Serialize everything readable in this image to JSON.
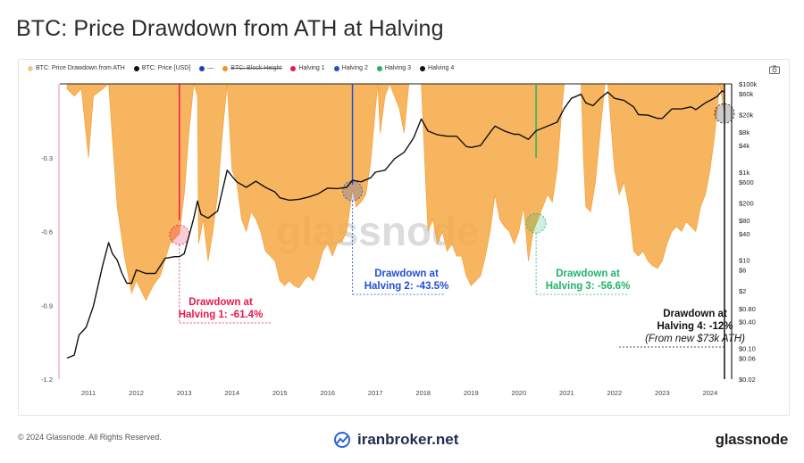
{
  "page": {
    "title": "BTC: Price Drawdown from ATH at Halving",
    "copyright": "© 2024 Glassnode. All Rights Reserved.",
    "source_watermark": "iranbroker.net",
    "brand": "glassnode"
  },
  "legend": [
    {
      "label": "BTC: Price Drawdown from ATH",
      "color": "#f7c58c",
      "kind": "dot",
      "struck": false
    },
    {
      "label": "BTC: Price [USD]",
      "color": "#111111",
      "kind": "dot",
      "struck": false
    },
    {
      "label": "—",
      "color": "#1f3fbf",
      "kind": "dot",
      "struck": false
    },
    {
      "label": "BTC: Block Height",
      "color": "#f7931a",
      "kind": "dot",
      "struck": true
    },
    {
      "label": "Halving 1",
      "color": "#e8194a",
      "kind": "dot",
      "struck": false
    },
    {
      "label": "Halving 2",
      "color": "#1e4fd8",
      "kind": "dot",
      "struck": false
    },
    {
      "label": "Halving 3",
      "color": "#1fb46a",
      "kind": "dot",
      "struck": false
    },
    {
      "label": "Halving 4",
      "color": "#111111",
      "kind": "dot",
      "struck": false
    }
  ],
  "chart_data": {
    "type": "area",
    "title": "BTC: Price Drawdown from ATH at Halving",
    "watermark": "glassnode",
    "x_ticks": [
      "2011",
      "2012",
      "2013",
      "2014",
      "2015",
      "2016",
      "2017",
      "2018",
      "2019",
      "2020",
      "2021",
      "2022",
      "2023",
      "2024"
    ],
    "y_left": {
      "ticks": [
        -0.3,
        -0.6,
        -0.9,
        -1.2
      ],
      "tick_labels": [
        "-0.3",
        "-0.6",
        "-0.9",
        "-1.2"
      ],
      "range": [
        -1.2,
        0
      ]
    },
    "y_right": {
      "scale": "log",
      "range": [
        0.02,
        100000
      ],
      "tick_values": [
        100000,
        60000,
        20000,
        8000,
        4000,
        1000,
        600,
        200,
        80,
        40,
        10,
        6,
        2,
        0.8,
        0.4,
        0.1,
        0.06,
        0.02
      ],
      "tick_labels": [
        "$100k",
        "$60k",
        "$20k",
        "$8k",
        "$4k",
        "$1k",
        "$600",
        "$200",
        "$80",
        "$40",
        "$10",
        "$6",
        "$2",
        "$0.80",
        "$0.40",
        "$0.10",
        "$0.06",
        "$0.02"
      ]
    },
    "series": [
      {
        "name": "BTC: Price Drawdown from ATH",
        "color": "#f7a844",
        "axis": "left",
        "points": [
          [
            2010.55,
            -0.02
          ],
          [
            2010.7,
            -0.05
          ],
          [
            2010.85,
            -0.02
          ],
          [
            2011.0,
            -0.3
          ],
          [
            2011.1,
            -0.05
          ],
          [
            2011.3,
            -0.02
          ],
          [
            2011.42,
            0
          ],
          [
            2011.6,
            -0.5
          ],
          [
            2011.75,
            -0.7
          ],
          [
            2011.9,
            -0.85
          ],
          [
            2012.0,
            -0.8
          ],
          [
            2012.2,
            -0.88
          ],
          [
            2012.35,
            -0.82
          ],
          [
            2012.5,
            -0.78
          ],
          [
            2012.7,
            -0.65
          ],
          [
            2012.9,
            -0.61
          ],
          [
            2013.0,
            -0.45
          ],
          [
            2013.1,
            -0.2
          ],
          [
            2013.2,
            0
          ],
          [
            2013.28,
            -0.05
          ],
          [
            2013.3,
            -0.65
          ],
          [
            2013.4,
            -0.55
          ],
          [
            2013.5,
            -0.72
          ],
          [
            2013.6,
            -0.6
          ],
          [
            2013.7,
            -0.45
          ],
          [
            2013.8,
            -0.2
          ],
          [
            2013.9,
            0
          ],
          [
            2014.0,
            -0.35
          ],
          [
            2014.1,
            -0.4
          ],
          [
            2014.2,
            -0.55
          ],
          [
            2014.3,
            -0.6
          ],
          [
            2014.4,
            -0.52
          ],
          [
            2014.5,
            -0.55
          ],
          [
            2014.6,
            -0.6
          ],
          [
            2014.7,
            -0.68
          ],
          [
            2014.8,
            -0.7
          ],
          [
            2014.9,
            -0.72
          ],
          [
            2015.0,
            -0.8
          ],
          [
            2015.1,
            -0.82
          ],
          [
            2015.2,
            -0.8
          ],
          [
            2015.3,
            -0.82
          ],
          [
            2015.4,
            -0.83
          ],
          [
            2015.5,
            -0.8
          ],
          [
            2015.6,
            -0.78
          ],
          [
            2015.7,
            -0.8
          ],
          [
            2015.8,
            -0.75
          ],
          [
            2015.9,
            -0.68
          ],
          [
            2016.0,
            -0.65
          ],
          [
            2016.1,
            -0.7
          ],
          [
            2016.2,
            -0.65
          ],
          [
            2016.3,
            -0.64
          ],
          [
            2016.4,
            -0.6
          ],
          [
            2016.52,
            -0.43
          ],
          [
            2016.6,
            -0.5
          ],
          [
            2016.7,
            -0.48
          ],
          [
            2016.8,
            -0.45
          ],
          [
            2016.9,
            -0.32
          ],
          [
            2017.0,
            -0.1
          ],
          [
            2017.05,
            0
          ],
          [
            2017.1,
            -0.2
          ],
          [
            2017.2,
            -0.05
          ],
          [
            2017.3,
            0
          ],
          [
            2017.5,
            -0.1
          ],
          [
            2017.6,
            -0.2
          ],
          [
            2017.7,
            0
          ],
          [
            2017.9,
            0
          ],
          [
            2017.96,
            0
          ],
          [
            2018.05,
            -0.4
          ],
          [
            2018.1,
            -0.6
          ],
          [
            2018.2,
            -0.55
          ],
          [
            2018.3,
            -0.65
          ],
          [
            2018.4,
            -0.6
          ],
          [
            2018.5,
            -0.68
          ],
          [
            2018.6,
            -0.65
          ],
          [
            2018.7,
            -0.7
          ],
          [
            2018.8,
            -0.7
          ],
          [
            2018.9,
            -0.78
          ],
          [
            2019.0,
            -0.82
          ],
          [
            2019.1,
            -0.8
          ],
          [
            2019.2,
            -0.78
          ],
          [
            2019.3,
            -0.7
          ],
          [
            2019.4,
            -0.6
          ],
          [
            2019.5,
            -0.45
          ],
          [
            2019.6,
            -0.55
          ],
          [
            2019.7,
            -0.58
          ],
          [
            2019.8,
            -0.6
          ],
          [
            2019.9,
            -0.65
          ],
          [
            2020.0,
            -0.6
          ],
          [
            2020.1,
            -0.5
          ],
          [
            2020.2,
            -0.72
          ],
          [
            2020.3,
            -0.6
          ],
          [
            2020.36,
            -0.57
          ],
          [
            2020.5,
            -0.5
          ],
          [
            2020.6,
            -0.45
          ],
          [
            2020.7,
            -0.48
          ],
          [
            2020.8,
            -0.35
          ],
          [
            2020.9,
            -0.1
          ],
          [
            2020.95,
            0
          ],
          [
            2021.1,
            0
          ],
          [
            2021.2,
            0
          ],
          [
            2021.3,
            0
          ],
          [
            2021.35,
            -0.3
          ],
          [
            2021.4,
            -0.5
          ],
          [
            2021.5,
            -0.52
          ],
          [
            2021.6,
            -0.4
          ],
          [
            2021.7,
            -0.2
          ],
          [
            2021.8,
            0
          ],
          [
            2021.86,
            0
          ],
          [
            2022.0,
            -0.35
          ],
          [
            2022.1,
            -0.45
          ],
          [
            2022.2,
            -0.4
          ],
          [
            2022.3,
            -0.5
          ],
          [
            2022.4,
            -0.68
          ],
          [
            2022.5,
            -0.7
          ],
          [
            2022.6,
            -0.68
          ],
          [
            2022.7,
            -0.72
          ],
          [
            2022.8,
            -0.74
          ],
          [
            2022.9,
            -0.75
          ],
          [
            2023.0,
            -0.72
          ],
          [
            2023.1,
            -0.65
          ],
          [
            2023.2,
            -0.6
          ],
          [
            2023.3,
            -0.58
          ],
          [
            2023.4,
            -0.6
          ],
          [
            2023.5,
            -0.56
          ],
          [
            2023.6,
            -0.58
          ],
          [
            2023.7,
            -0.6
          ],
          [
            2023.8,
            -0.5
          ],
          [
            2023.9,
            -0.45
          ],
          [
            2024.0,
            -0.35
          ],
          [
            2024.1,
            -0.2
          ],
          [
            2024.2,
            0
          ],
          [
            2024.3,
            -0.12
          ]
        ]
      },
      {
        "name": "BTC: Price [USD]",
        "color": "#111111",
        "axis": "right",
        "points": [
          [
            2010.55,
            0.06
          ],
          [
            2010.7,
            0.07
          ],
          [
            2010.8,
            0.2
          ],
          [
            2010.95,
            0.3
          ],
          [
            2011.1,
            0.9
          ],
          [
            2011.3,
            8
          ],
          [
            2011.42,
            25
          ],
          [
            2011.5,
            14
          ],
          [
            2011.6,
            10
          ],
          [
            2011.7,
            5
          ],
          [
            2011.8,
            3
          ],
          [
            2011.9,
            3
          ],
          [
            2012.0,
            6
          ],
          [
            2012.2,
            5
          ],
          [
            2012.4,
            5
          ],
          [
            2012.6,
            11
          ],
          [
            2012.8,
            12
          ],
          [
            2012.9,
            12
          ],
          [
            2013.0,
            14
          ],
          [
            2013.2,
            90
          ],
          [
            2013.28,
            220
          ],
          [
            2013.35,
            110
          ],
          [
            2013.5,
            90
          ],
          [
            2013.7,
            130
          ],
          [
            2013.9,
            1100
          ],
          [
            2014.0,
            800
          ],
          [
            2014.1,
            600
          ],
          [
            2014.3,
            450
          ],
          [
            2014.5,
            620
          ],
          [
            2014.7,
            450
          ],
          [
            2014.9,
            350
          ],
          [
            2015.0,
            260
          ],
          [
            2015.2,
            230
          ],
          [
            2015.4,
            240
          ],
          [
            2015.6,
            270
          ],
          [
            2015.8,
            320
          ],
          [
            2016.0,
            430
          ],
          [
            2016.2,
            420
          ],
          [
            2016.4,
            450
          ],
          [
            2016.52,
            650
          ],
          [
            2016.7,
            600
          ],
          [
            2016.9,
            740
          ],
          [
            2017.0,
            990
          ],
          [
            2017.2,
            1100
          ],
          [
            2017.4,
            2000
          ],
          [
            2017.6,
            2800
          ],
          [
            2017.8,
            6000
          ],
          [
            2017.96,
            16000
          ],
          [
            2018.1,
            8500
          ],
          [
            2018.3,
            7000
          ],
          [
            2018.5,
            6500
          ],
          [
            2018.7,
            6500
          ],
          [
            2018.9,
            3800
          ],
          [
            2019.0,
            3600
          ],
          [
            2019.2,
            4000
          ],
          [
            2019.4,
            8000
          ],
          [
            2019.5,
            11000
          ],
          [
            2019.7,
            8500
          ],
          [
            2019.9,
            7200
          ],
          [
            2020.0,
            7200
          ],
          [
            2020.2,
            5500
          ],
          [
            2020.36,
            8600
          ],
          [
            2020.6,
            11000
          ],
          [
            2020.8,
            13500
          ],
          [
            2020.95,
            28000
          ],
          [
            2021.1,
            47000
          ],
          [
            2021.3,
            58000
          ],
          [
            2021.4,
            37000
          ],
          [
            2021.55,
            32000
          ],
          [
            2021.7,
            47000
          ],
          [
            2021.86,
            65000
          ],
          [
            2022.0,
            47000
          ],
          [
            2022.2,
            42000
          ],
          [
            2022.4,
            30000
          ],
          [
            2022.5,
            20000
          ],
          [
            2022.7,
            19500
          ],
          [
            2022.9,
            16500
          ],
          [
            2023.0,
            16500
          ],
          [
            2023.2,
            27000
          ],
          [
            2023.4,
            27000
          ],
          [
            2023.6,
            30000
          ],
          [
            2023.7,
            26000
          ],
          [
            2023.9,
            37000
          ],
          [
            2024.0,
            42000
          ],
          [
            2024.15,
            52000
          ],
          [
            2024.25,
            70000
          ],
          [
            2024.3,
            64000
          ]
        ]
      }
    ],
    "halvings": [
      {
        "name": "Halving 1",
        "x": 2012.9,
        "color": "#e8194a",
        "label": [
          "Drawdown at",
          "Halving 1: -61.4%"
        ],
        "drawdown": -0.614
      },
      {
        "name": "Halving 2",
        "x": 2016.52,
        "color": "#1e4fd8",
        "label": [
          "Drawdown at",
          "Halving 2: -43.5%"
        ],
        "drawdown": -0.435
      },
      {
        "name": "Halving 3",
        "x": 2020.36,
        "color": "#1fb46a",
        "label": [
          "Drawdown at",
          "Halving 3: -56.6%"
        ],
        "drawdown": -0.566
      },
      {
        "name": "Halving 4",
        "x": 2024.3,
        "color": "#111111",
        "label": [
          "Drawdown at",
          "Halving 4: -12%",
          "(From new $73k ATH)"
        ],
        "drawdown": -0.12
      }
    ]
  }
}
